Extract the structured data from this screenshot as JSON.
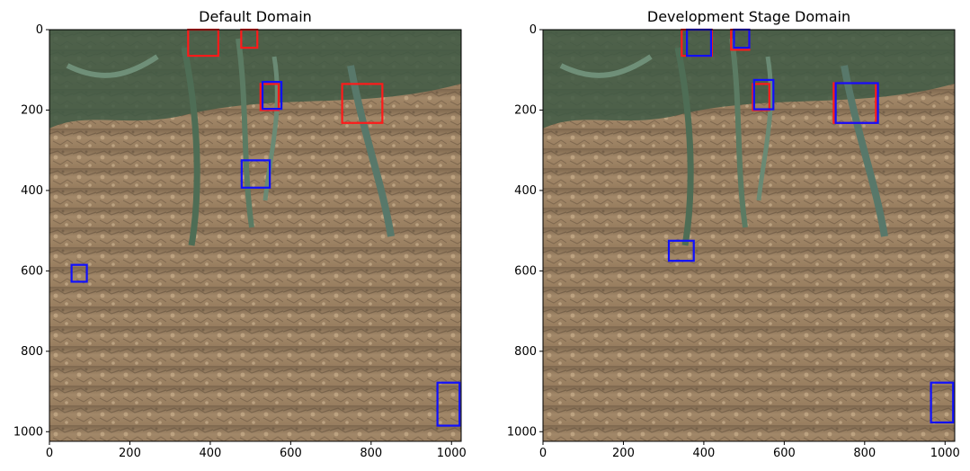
{
  "panels": [
    {
      "title": "Default Domain",
      "xticks": [
        "0",
        "200",
        "400",
        "600",
        "800",
        "1000"
      ],
      "yticks": [
        "0",
        "200",
        "400",
        "600",
        "800",
        "1000"
      ],
      "red_boxes": [
        {
          "x1": 345,
          "y1": 0,
          "x2": 420,
          "y2": 65
        },
        {
          "x1": 477,
          "y1": 0,
          "x2": 517,
          "y2": 45
        },
        {
          "x1": 525,
          "y1": 135,
          "x2": 570,
          "y2": 200
        },
        {
          "x1": 728,
          "y1": 135,
          "x2": 828,
          "y2": 232
        }
      ],
      "blue_boxes": [
        {
          "x1": 530,
          "y1": 130,
          "x2": 577,
          "y2": 197
        },
        {
          "x1": 478,
          "y1": 325,
          "x2": 548,
          "y2": 393
        },
        {
          "x1": 55,
          "y1": 585,
          "x2": 93,
          "y2": 627
        },
        {
          "x1": 965,
          "y1": 878,
          "x2": 1020,
          "y2": 985
        }
      ]
    },
    {
      "title": "Development Stage Domain",
      "xticks": [
        "0",
        "200",
        "400",
        "600",
        "800",
        "1000"
      ],
      "yticks": [
        "0",
        "200",
        "400",
        "600",
        "800",
        "1000"
      ],
      "red_boxes": [
        {
          "x1": 345,
          "y1": 0,
          "x2": 420,
          "y2": 65
        },
        {
          "x1": 468,
          "y1": 0,
          "x2": 513,
          "y2": 50
        },
        {
          "x1": 522,
          "y1": 135,
          "x2": 563,
          "y2": 200
        },
        {
          "x1": 723,
          "y1": 133,
          "x2": 828,
          "y2": 232
        }
      ],
      "blue_boxes": [
        {
          "x1": 358,
          "y1": 0,
          "x2": 418,
          "y2": 65
        },
        {
          "x1": 475,
          "y1": 0,
          "x2": 513,
          "y2": 45
        },
        {
          "x1": 525,
          "y1": 125,
          "x2": 573,
          "y2": 198
        },
        {
          "x1": 728,
          "y1": 133,
          "x2": 833,
          "y2": 232
        },
        {
          "x1": 313,
          "y1": 525,
          "x2": 375,
          "y2": 575
        },
        {
          "x1": 965,
          "y1": 878,
          "x2": 1020,
          "y2": 977
        }
      ]
    }
  ]
}
